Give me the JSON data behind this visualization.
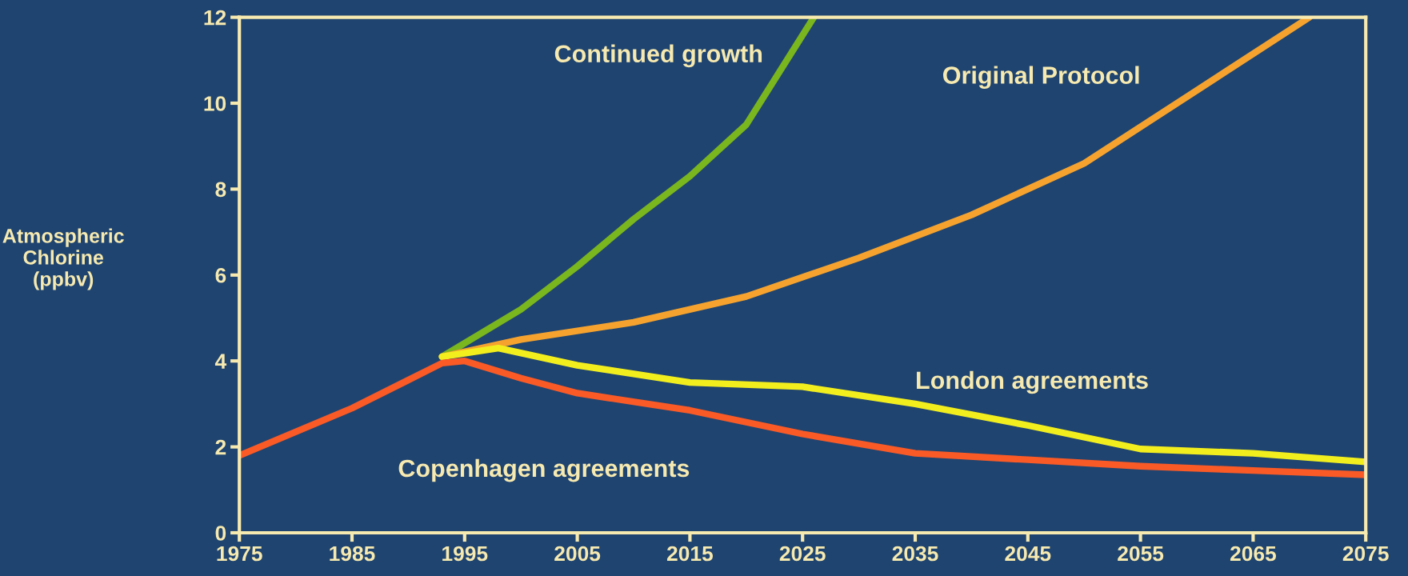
{
  "chart_data": {
    "type": "line",
    "ylabel": "Atmospheric\nChlorine\n(ppbv)",
    "xlim": [
      1975,
      2075
    ],
    "xticks": [
      1975,
      1985,
      1995,
      2005,
      2015,
      2025,
      2035,
      2045,
      2055,
      2065,
      2075
    ],
    "ylim": [
      0,
      12
    ],
    "yticks": [
      0,
      2,
      4,
      6,
      8,
      10,
      12
    ],
    "grid": false,
    "legend": false,
    "marker": "none",
    "line_style": "solid",
    "series": [
      {
        "name": "Continued growth",
        "color": "#7ab61e",
        "x": [
          1993,
          2000,
          2005,
          2010,
          2015,
          2020,
          2026
        ],
        "values": [
          4.1,
          5.2,
          6.2,
          7.3,
          8.3,
          9.5,
          12
        ]
      },
      {
        "name": "Original Protocol",
        "color": "#f5a32e",
        "x": [
          1993,
          2000,
          2010,
          2020,
          2030,
          2040,
          2050,
          2060,
          2070
        ],
        "values": [
          4.1,
          4.5,
          4.9,
          5.5,
          6.4,
          7.4,
          8.6,
          10.3,
          12
        ]
      },
      {
        "name": "London agreements",
        "color": "#f2ee1e",
        "x": [
          1993,
          1998,
          2005,
          2015,
          2025,
          2035,
          2045,
          2055,
          2065,
          2075
        ],
        "values": [
          4.1,
          4.3,
          3.9,
          3.5,
          3.4,
          3.0,
          2.5,
          1.95,
          1.85,
          1.65
        ]
      },
      {
        "name": "Copenhagen agreements",
        "color": "#f95a26",
        "x": [
          1975,
          1985,
          1993,
          1995,
          2000,
          2005,
          2015,
          2025,
          2035,
          2045,
          2055,
          2065,
          2075
        ],
        "values": [
          1.8,
          2.9,
          3.95,
          4.0,
          3.6,
          3.25,
          2.85,
          2.3,
          1.85,
          1.7,
          1.55,
          1.45,
          1.35
        ]
      }
    ]
  }
}
